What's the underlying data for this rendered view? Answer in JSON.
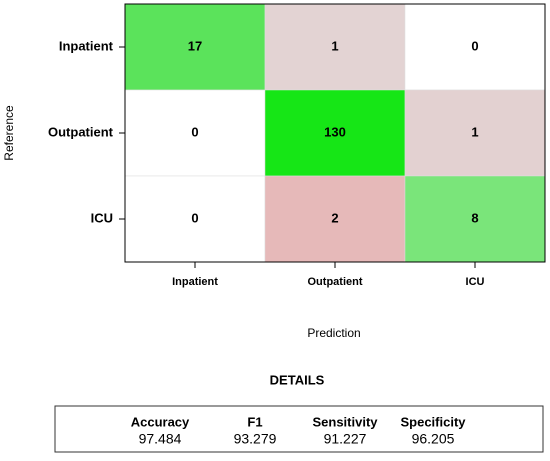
{
  "chart_data": {
    "type": "confusion_matrix",
    "row_labels": [
      "Inpatient",
      "Outpatient",
      "ICU"
    ],
    "col_labels": [
      "Inpatient",
      "Outpatient",
      "ICU"
    ],
    "values": [
      [
        17,
        1,
        0
      ],
      [
        0,
        130,
        1
      ],
      [
        0,
        2,
        8
      ]
    ],
    "colors": [
      [
        "#5be35b",
        "#e3d3d3",
        "#ffffff"
      ],
      [
        "#ffffff",
        "#16e616",
        "#e3d1d1"
      ],
      [
        "#ffffff",
        "#e6b9b9",
        "#7ae57a"
      ]
    ],
    "xlabel": "Prediction",
    "ylabel": "Reference"
  },
  "details": {
    "title": "DETAILS",
    "metrics": [
      {
        "name": "Accuracy",
        "value": 97.484
      },
      {
        "name": "F1",
        "value": 93.279
      },
      {
        "name": "Sensitivity",
        "value": 91.227
      },
      {
        "name": "Specificity",
        "value": 96.205
      }
    ]
  }
}
